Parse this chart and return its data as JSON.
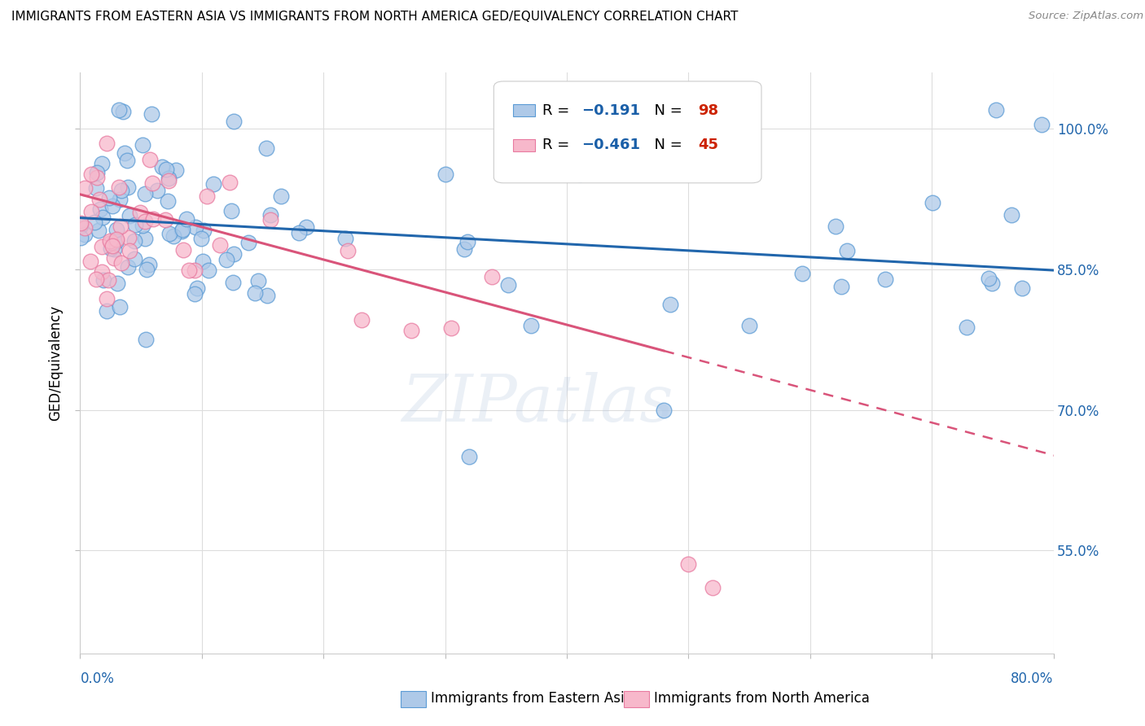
{
  "title": "IMMIGRANTS FROM EASTERN ASIA VS IMMIGRANTS FROM NORTH AMERICA GED/EQUIVALENCY CORRELATION CHART",
  "source": "Source: ZipAtlas.com",
  "ylabel": "GED/Equivalency",
  "y_tick_labels": [
    "55.0%",
    "70.0%",
    "85.0%",
    "100.0%"
  ],
  "y_tick_values": [
    0.55,
    0.7,
    0.85,
    1.0
  ],
  "x_range": [
    0.0,
    0.8
  ],
  "y_range": [
    0.44,
    1.06
  ],
  "legend_r_blue": "R = −0.191",
  "legend_n_blue": "N = 98",
  "legend_r_pink": "R = −0.461",
  "legend_n_pink": "N = 45",
  "blue_color": "#aec9e8",
  "pink_color": "#f7b8cb",
  "blue_edge_color": "#5b9bd5",
  "pink_edge_color": "#e87aa0",
  "blue_line_color": "#2166ac",
  "pink_line_color": "#d9547a",
  "watermark_text": "ZIPatlas",
  "r_value_color": "#1a5fa8",
  "n_value_color": "#cc2200"
}
